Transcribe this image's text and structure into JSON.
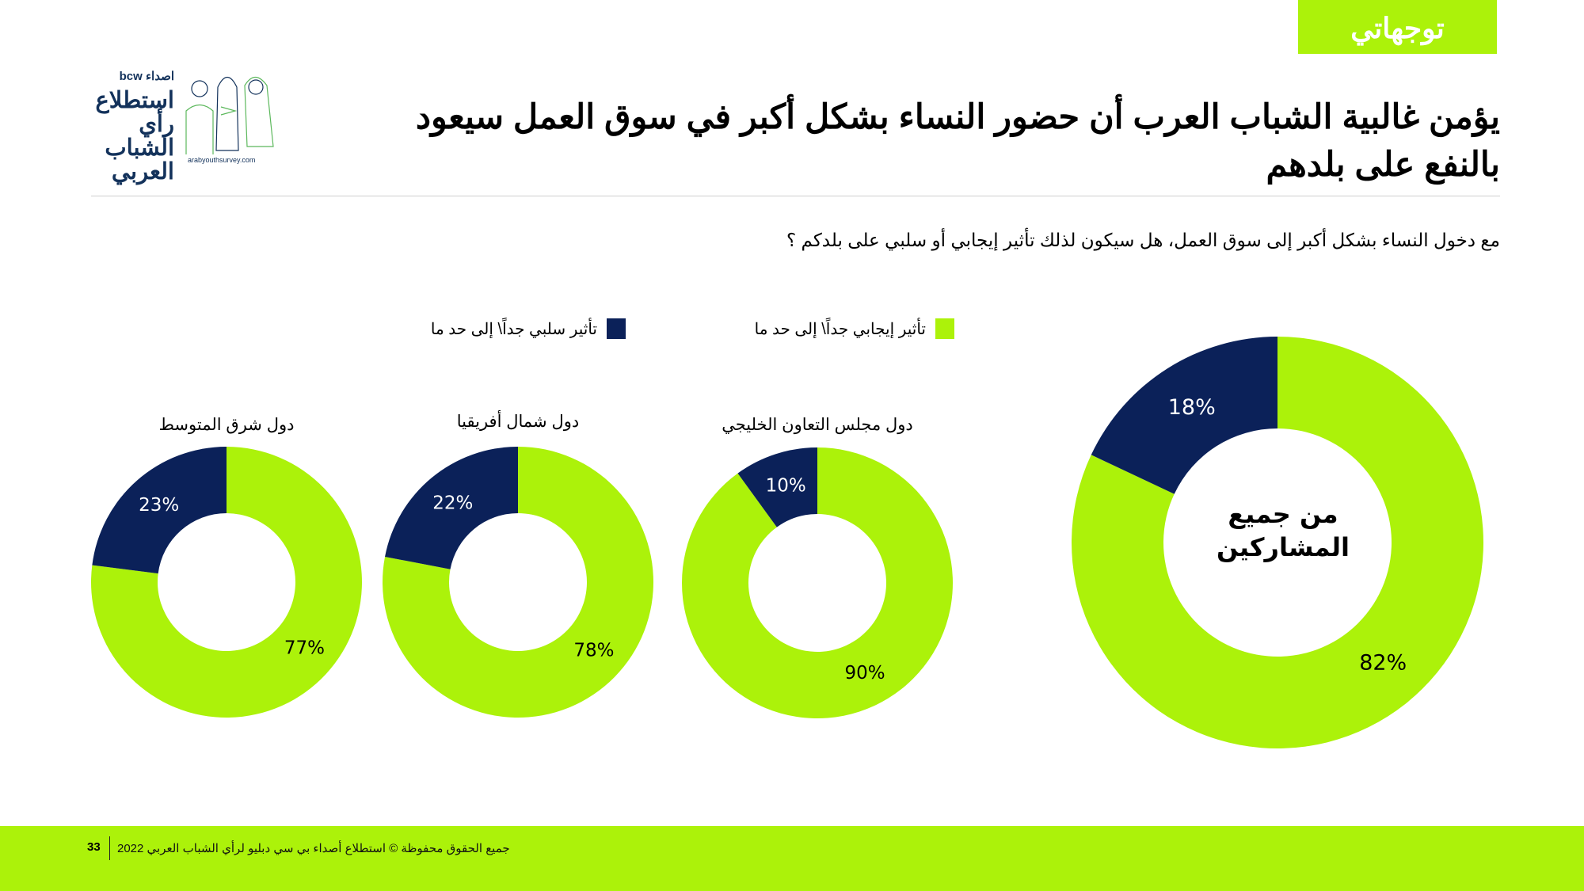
{
  "tag": "توجهاتي",
  "title": "يؤمن غالبية الشباب العرب أن حضور النساء بشكل أكبر في سوق العمل سيعود بالنفع على بلدهم",
  "question": "مع دخول النساء بشكل أكبر إلى سوق العمل، هل سيكون لذلك تأثير إيجابي أو سلبي على بلدكم ؟",
  "logo": {
    "brand": "اصداء bcw",
    "name": "استطلاع رأي الشباب العربي",
    "url": "arabyouthsurvey.com"
  },
  "colors": {
    "positive": "#acf20a",
    "negative": "#0b2159"
  },
  "chart_data": {
    "type": "pie",
    "legend": [
      {
        "name": "تأثير إيجابي جداً\\ إلى حد ما",
        "color": "#acf20a"
      },
      {
        "name": "تأثير سلبي جداً\\ إلى حد ما",
        "color": "#0b2159"
      }
    ],
    "charts": [
      {
        "title": "من جميع المشاركين",
        "positive": 82,
        "negative": 18,
        "positive_label": "82%",
        "negative_label": "18%"
      },
      {
        "title": "دول مجلس التعاون الخليجي",
        "positive": 90,
        "negative": 10,
        "positive_label": "90%",
        "negative_label": "10%"
      },
      {
        "title": "دول شمال أفريقيا",
        "positive": 78,
        "negative": 22,
        "positive_label": "78%",
        "negative_label": "22%"
      },
      {
        "title": "دول شرق المتوسط",
        "positive": 77,
        "negative": 23,
        "positive_label": "77%",
        "negative_label": "23%"
      }
    ]
  },
  "footer": {
    "text": "جميع الحقوق محفوظة © استطلاع أصداء بي سي دبليو لرأي الشباب العربي 2022",
    "page": "33"
  }
}
